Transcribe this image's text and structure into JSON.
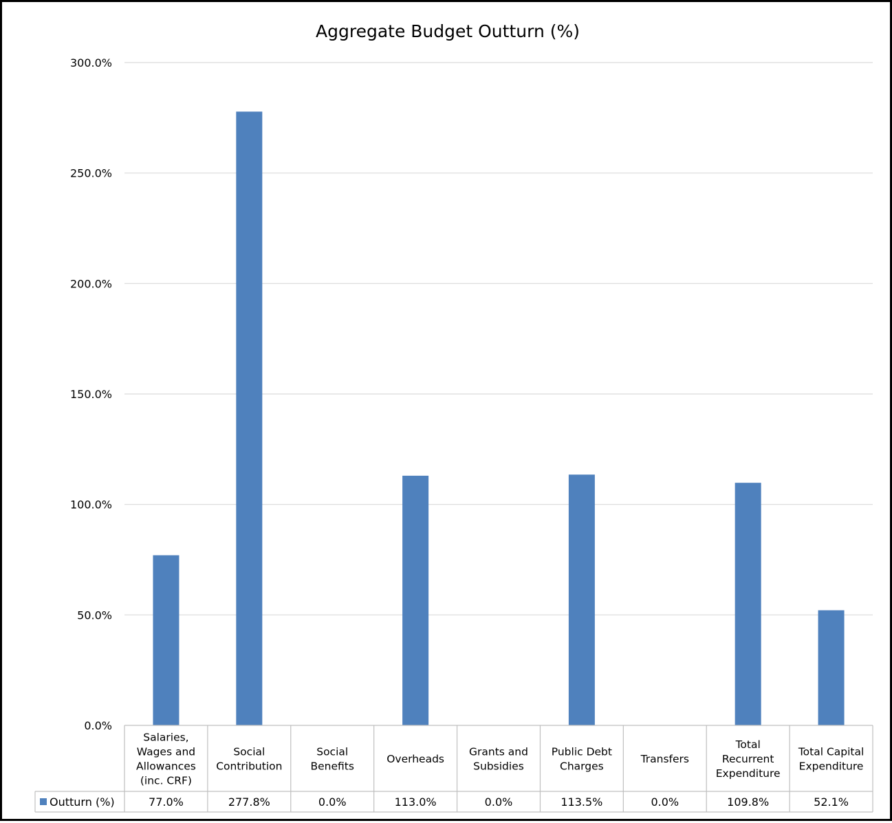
{
  "chart_data": {
    "type": "bar",
    "title": "Aggregate Budget Outturn (%)",
    "categories": [
      "Salaries, Wages and Allowances (inc. CRF)",
      "Social Contribution",
      "Social Benefits",
      "Overheads",
      "Grants and Subsidies",
      "Public Debt Charges",
      "Transfers",
      "Total Recurrent Expenditure",
      "Total Capital Expenditure"
    ],
    "category_lines": [
      [
        "Salaries,",
        "Wages and",
        "Allowances",
        "(inc. CRF)"
      ],
      [
        "Social",
        "Contribution"
      ],
      [
        "Social",
        "Benefits"
      ],
      [
        "Overheads"
      ],
      [
        "Grants and",
        "Subsidies"
      ],
      [
        "Public Debt",
        "Charges"
      ],
      [
        "Transfers"
      ],
      [
        "Total",
        "Recurrent",
        "Expenditure"
      ],
      [
        "Total Capital",
        "Expenditure"
      ]
    ],
    "series": [
      {
        "name": "Outturn (%)",
        "values": [
          77.0,
          277.8,
          0.0,
          113.0,
          0.0,
          113.5,
          0.0,
          109.8,
          52.1
        ],
        "value_labels": [
          "77.0%",
          "277.8%",
          "0.0%",
          "113.0%",
          "0.0%",
          "113.5%",
          "0.0%",
          "109.8%",
          "52.1%"
        ],
        "color": "#4F81BD"
      }
    ],
    "ylim": [
      0,
      300
    ],
    "yticks": [
      0,
      50,
      100,
      150,
      200,
      250,
      300
    ],
    "ytick_labels": [
      "0.0%",
      "50.0%",
      "100.0%",
      "150.0%",
      "200.0%",
      "250.0%",
      "300.0%"
    ],
    "xlabel": "",
    "ylabel": "",
    "grid": true,
    "legend": "data-table",
    "gridline_color": "#D9D9D9",
    "table_border_color": "#BFBFBF"
  }
}
